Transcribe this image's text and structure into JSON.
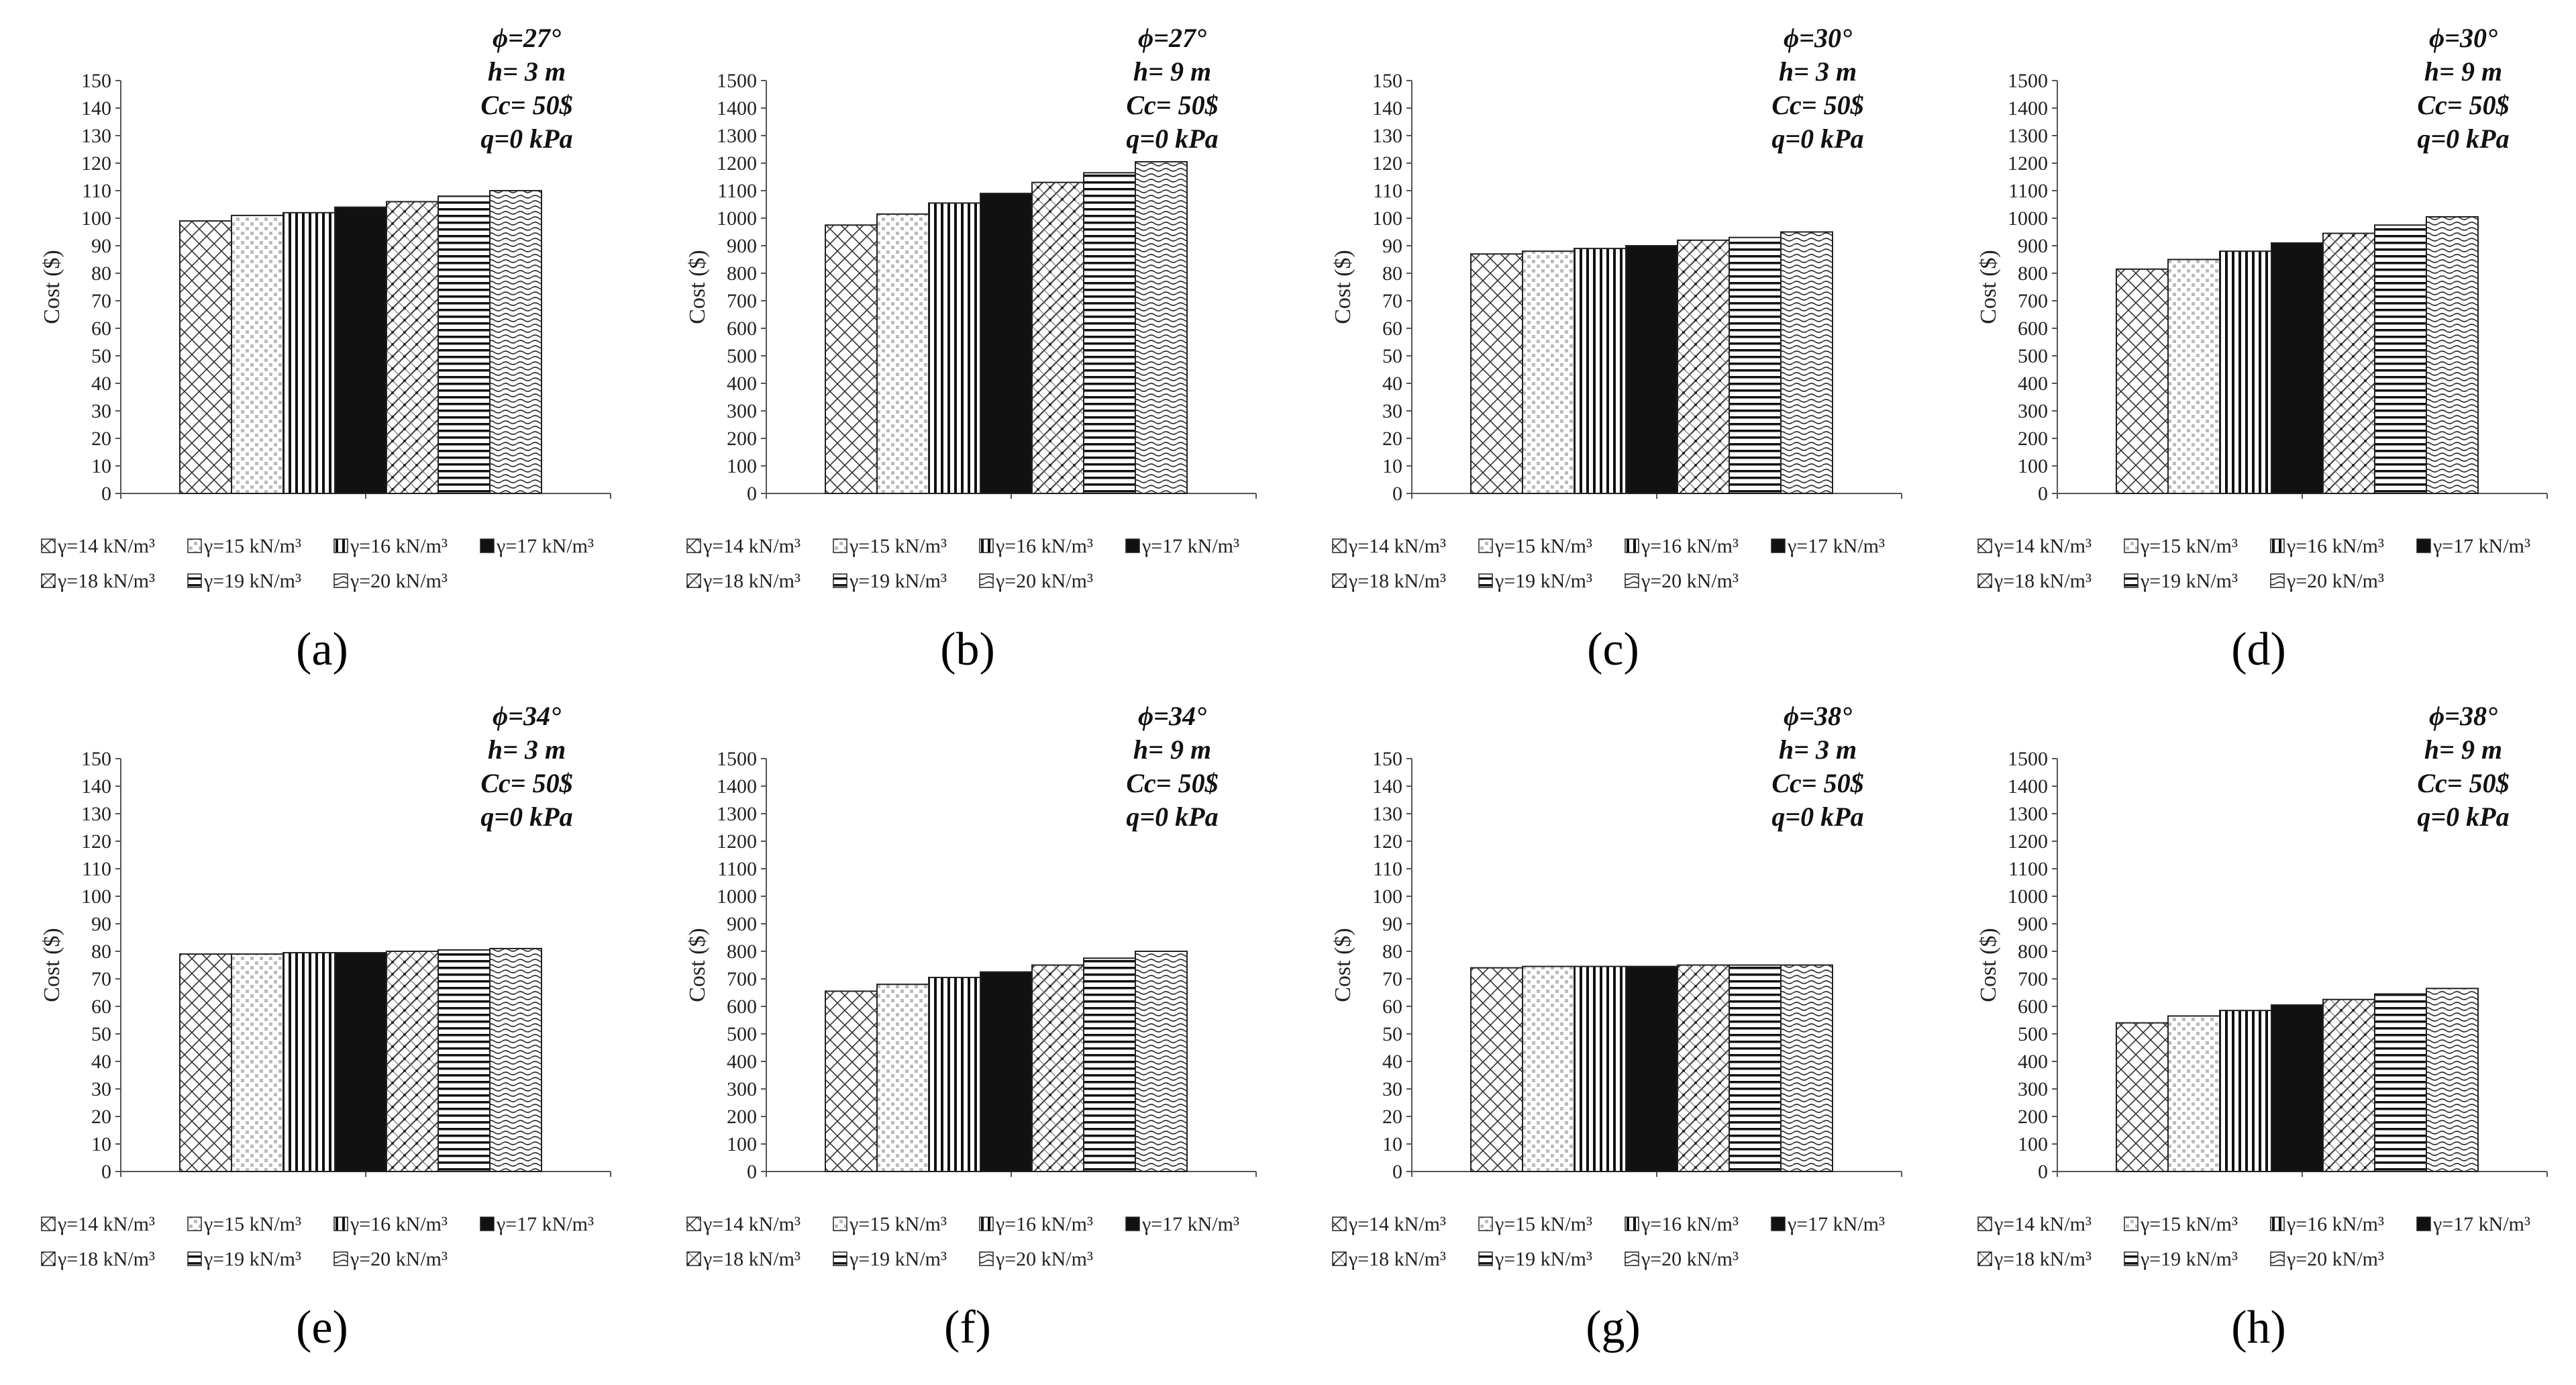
{
  "figure": {
    "legend_labels": [
      "γ=14 kN/m³",
      "γ=15 kN/m³",
      "γ=16 kN/m³",
      "γ=17 kN/m³",
      "γ=18 kN/m³",
      "γ=19 kN/m³",
      "γ=20 kN/m³"
    ],
    "ylabel": "Cost ($)"
  },
  "chart_data": [
    {
      "type": "bar",
      "caption": "(a)",
      "annotation": [
        "ϕ=27°",
        "h= 3 m",
        "Cc= 50$",
        "q=0 kPa"
      ],
      "ylabel": "Cost ($)",
      "ylim": [
        0,
        150
      ],
      "ytick_step": 10,
      "categories": [
        "γ=14 kN/m³",
        "γ=15 kN/m³",
        "γ=16 kN/m³",
        "γ=17 kN/m³",
        "γ=18 kN/m³",
        "γ=19 kN/m³",
        "γ=20 kN/m³"
      ],
      "values": [
        99,
        101,
        102,
        104,
        106,
        108,
        110
      ]
    },
    {
      "type": "bar",
      "caption": "(b)",
      "annotation": [
        "ϕ=27°",
        "h= 9 m",
        "Cc= 50$",
        "q=0 kPa"
      ],
      "ylabel": "Cost ($)",
      "ylim": [
        0,
        1500
      ],
      "ytick_step": 100,
      "categories": [
        "γ=14 kN/m³",
        "γ=15 kN/m³",
        "γ=16 kN/m³",
        "γ=17 kN/m³",
        "γ=18 kN/m³",
        "γ=19 kN/m³",
        "γ=20 kN/m³"
      ],
      "values": [
        975,
        1015,
        1055,
        1090,
        1130,
        1165,
        1205
      ]
    },
    {
      "type": "bar",
      "caption": "(c)",
      "annotation": [
        "ϕ=30°",
        "h= 3 m",
        "Cc= 50$",
        "q=0 kPa"
      ],
      "ylabel": "Cost ($)",
      "ylim": [
        0,
        150
      ],
      "ytick_step": 10,
      "categories": [
        "γ=14 kN/m³",
        "γ=15 kN/m³",
        "γ=16 kN/m³",
        "γ=17 kN/m³",
        "γ=18 kN/m³",
        "γ=19 kN/m³",
        "γ=20 kN/m³"
      ],
      "values": [
        87,
        88,
        89,
        90,
        92,
        93,
        95
      ]
    },
    {
      "type": "bar",
      "caption": "(d)",
      "annotation": [
        "ϕ=30°",
        "h= 9 m",
        "Cc= 50$",
        "q=0 kPa"
      ],
      "ylabel": "Cost ($)",
      "ylim": [
        0,
        1500
      ],
      "ytick_step": 100,
      "categories": [
        "γ=14 kN/m³",
        "γ=15 kN/m³",
        "γ=16 kN/m³",
        "γ=17 kN/m³",
        "γ=18 kN/m³",
        "γ=19 kN/m³",
        "γ=20 kN/m³"
      ],
      "values": [
        815,
        850,
        880,
        910,
        945,
        975,
        1005
      ]
    },
    {
      "type": "bar",
      "caption": "(e)",
      "annotation": [
        "ϕ=34°",
        "h= 3 m",
        "Cc= 50$",
        "q=0 kPa"
      ],
      "ylabel": "Cost ($)",
      "ylim": [
        0,
        150
      ],
      "ytick_step": 10,
      "categories": [
        "γ=14 kN/m³",
        "γ=15 kN/m³",
        "γ=16 kN/m³",
        "γ=17 kN/m³",
        "γ=18 kN/m³",
        "γ=19 kN/m³",
        "γ=20 kN/m³"
      ],
      "values": [
        79,
        79,
        79.5,
        79.5,
        80,
        80.5,
        81
      ]
    },
    {
      "type": "bar",
      "caption": "(f)",
      "annotation": [
        "ϕ=34°",
        "h= 9 m",
        "Cc= 50$",
        "q=0 kPa"
      ],
      "ylabel": "Cost ($)",
      "ylim": [
        0,
        1500
      ],
      "ytick_step": 100,
      "categories": [
        "γ=14 kN/m³",
        "γ=15 kN/m³",
        "γ=16 kN/m³",
        "γ=17 kN/m³",
        "γ=18 kN/m³",
        "γ=19 kN/m³",
        "γ=20 kN/m³"
      ],
      "values": [
        655,
        680,
        705,
        725,
        750,
        775,
        800
      ]
    },
    {
      "type": "bar",
      "caption": "(g)",
      "annotation": [
        "ϕ=38°",
        "h= 3 m",
        "Cc= 50$",
        "q=0 kPa"
      ],
      "ylabel": "Cost ($)",
      "ylim": [
        0,
        150
      ],
      "ytick_step": 10,
      "categories": [
        "γ=14 kN/m³",
        "γ=15 kN/m³",
        "γ=16 kN/m³",
        "γ=17 kN/m³",
        "γ=18 kN/m³",
        "γ=19 kN/m³",
        "γ=20 kN/m³"
      ],
      "values": [
        74,
        74.5,
        74.5,
        74.5,
        75,
        75,
        75
      ]
    },
    {
      "type": "bar",
      "caption": "(h)",
      "annotation": [
        "ϕ=38°",
        "h= 9 m",
        "Cc= 50$",
        "q=0 kPa"
      ],
      "ylabel": "Cost ($)",
      "ylim": [
        0,
        1500
      ],
      "ytick_step": 100,
      "categories": [
        "γ=14 kN/m³",
        "γ=15 kN/m³",
        "γ=16 kN/m³",
        "γ=17 kN/m³",
        "γ=18 kN/m³",
        "γ=19 kN/m³",
        "γ=20 kN/m³"
      ],
      "values": [
        540,
        565,
        585,
        605,
        625,
        645,
        665
      ]
    }
  ]
}
